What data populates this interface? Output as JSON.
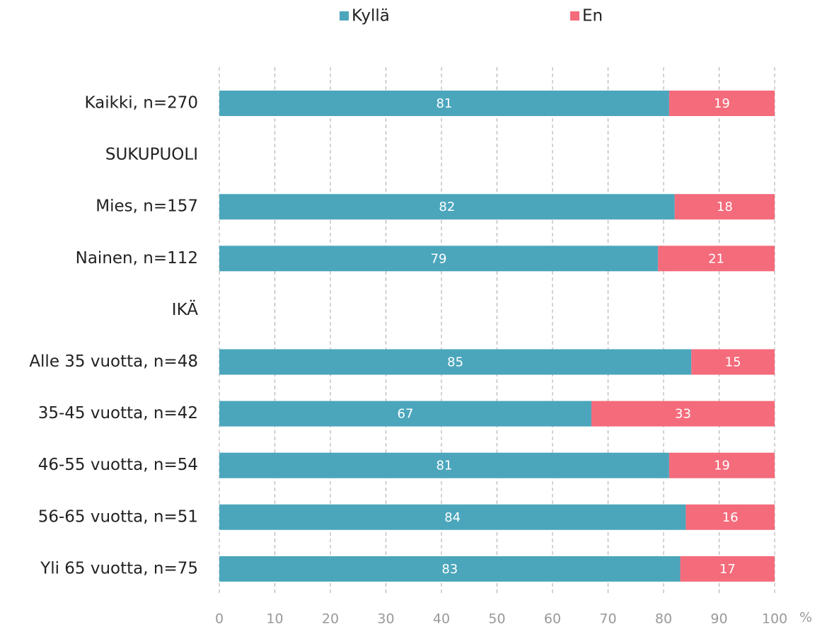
{
  "chart_data": {
    "type": "stacked-barh",
    "categories": [
      "Kaikki, n=270",
      "SUKUPUOLI",
      "Mies, n=157",
      "Nainen, n=112",
      "IKÄ",
      "Alle 35 vuotta, n=48",
      "35-45 vuotta, n=42",
      "46-55 vuotta, n=54",
      "56-65 vuotta, n=51",
      "Yli 65 vuotta, n=75"
    ],
    "series": [
      {
        "name": "Kyllä",
        "color": "#4ba6bc",
        "values": [
          81,
          null,
          82,
          79,
          null,
          85,
          67,
          81,
          84,
          83
        ]
      },
      {
        "name": "En",
        "color": "#f46b7b",
        "values": [
          19,
          null,
          18,
          21,
          null,
          15,
          33,
          19,
          16,
          17
        ]
      }
    ],
    "xlabel": "%",
    "xlim": [
      0,
      100
    ],
    "xticks": [
      0,
      10,
      20,
      30,
      40,
      50,
      60,
      70,
      80,
      90,
      100
    ],
    "grid": true,
    "legend": "top"
  }
}
